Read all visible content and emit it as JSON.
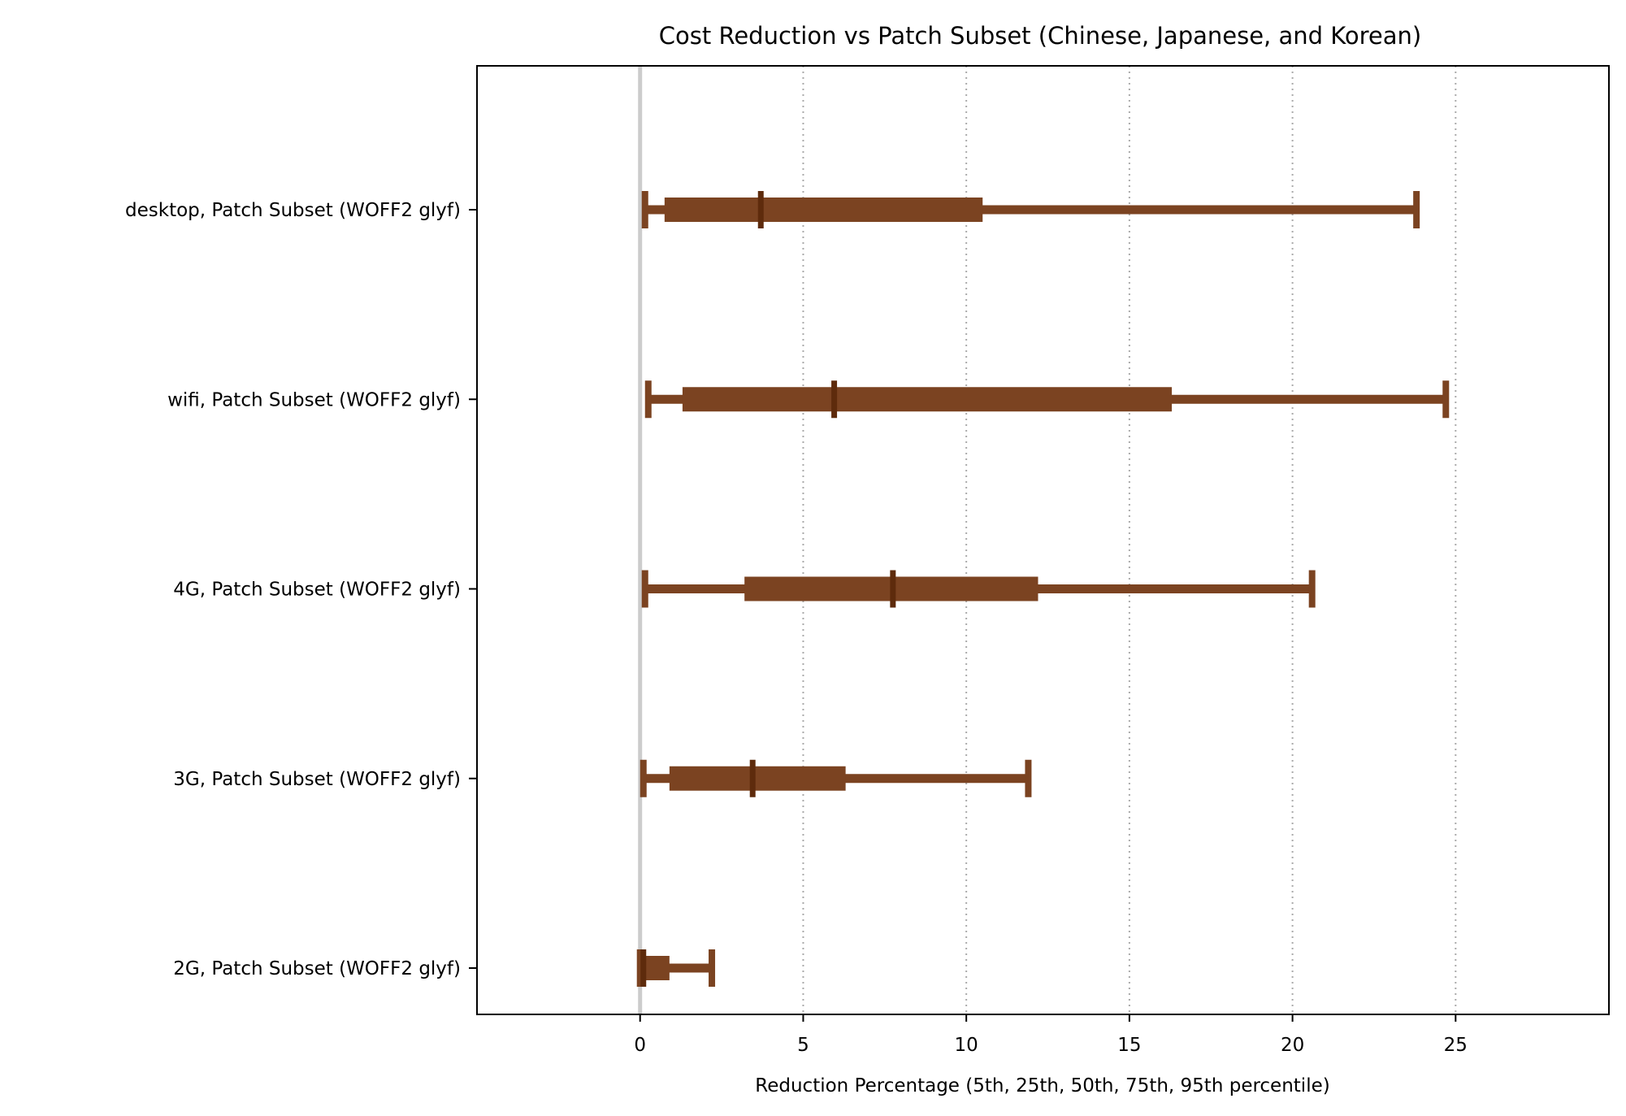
{
  "chart_data": {
    "type": "box",
    "orientation": "horizontal",
    "title": "Cost Reduction vs Patch Subset (Chinese, Japanese, and Korean)",
    "xlabel": "Reduction Percentage  (5th, 25th, 50th, 75th, 95th percentile)",
    "xlim": [
      -5,
      29.7
    ],
    "xticks": [
      "0",
      "5",
      "10",
      "15",
      "20",
      "25"
    ],
    "xtick_values": [
      0,
      5,
      10,
      15,
      20,
      25
    ],
    "grid": "vertical dotted at x ticks",
    "zero_line": true,
    "color": "#7b4321",
    "median_color": "#5e2b0c",
    "categories": [
      "desktop, Patch Subset (WOFF2 glyf)",
      "wifi, Patch Subset (WOFF2 glyf)",
      "4G, Patch Subset (WOFF2 glyf)",
      "3G, Patch Subset (WOFF2 glyf)",
      "2G, Patch Subset (WOFF2 glyf)"
    ],
    "series": [
      {
        "p5": 0.15,
        "p25": 0.75,
        "p50": 3.7,
        "p75": 10.5,
        "p95": 23.8
      },
      {
        "p5": 0.25,
        "p25": 1.3,
        "p50": 5.95,
        "p75": 16.3,
        "p95": 24.7
      },
      {
        "p5": 0.15,
        "p25": 3.2,
        "p50": 7.75,
        "p75": 12.2,
        "p95": 20.6
      },
      {
        "p5": 0.1,
        "p25": 0.9,
        "p50": 3.45,
        "p75": 6.3,
        "p95": 11.9
      },
      {
        "p5": 0.0,
        "p25": 0.05,
        "p50": 0.1,
        "p75": 0.9,
        "p95": 2.2
      }
    ]
  }
}
